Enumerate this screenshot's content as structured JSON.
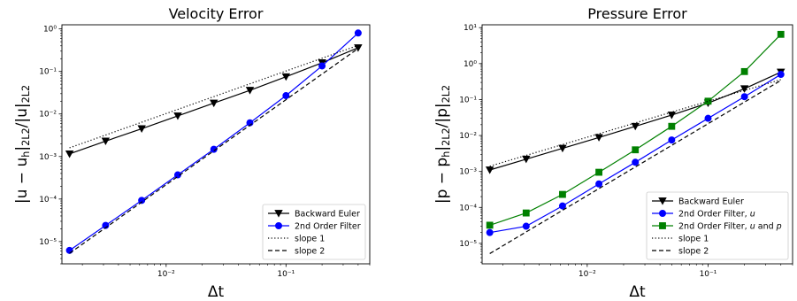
{
  "chart_data": [
    {
      "type": "line",
      "title": "Velocity Error",
      "xlabel": "Δt",
      "ylabel": "|u − u_h|_{2L2}/|u|_{2L2}",
      "xscale": "log",
      "yscale": "log",
      "xlim": [
        0.00135,
        0.5
      ],
      "ylim": [
        3e-06,
        1.25
      ],
      "xticks": [
        {
          "value": 0.01,
          "label": "10⁻²"
        },
        {
          "value": 0.1,
          "label": "10⁻¹"
        }
      ],
      "yticks": [
        {
          "value": 1e-05,
          "label": "10⁻⁵"
        },
        {
          "value": 0.0001,
          "label": "10⁻⁴"
        },
        {
          "value": 0.001,
          "label": "10⁻³"
        },
        {
          "value": 0.01,
          "label": "10⁻²"
        },
        {
          "value": 0.1,
          "label": "10⁻¹"
        },
        {
          "value": 1,
          "label": "10⁰"
        }
      ],
      "grid": false,
      "legend": "lower-right",
      "x": [
        0.0015625,
        0.003125,
        0.00625,
        0.0125,
        0.025,
        0.05,
        0.1,
        0.2,
        0.4
      ],
      "series": [
        {
          "name": "Backward Euler",
          "color": "#000000",
          "marker": "triangle-down",
          "dash": "solid",
          "values": [
            0.00115,
            0.0023,
            0.0045,
            0.009,
            0.018,
            0.036,
            0.075,
            0.16,
            0.36
          ]
        },
        {
          "name": "2nd Order Filter",
          "color": "#0000ff",
          "marker": "circle",
          "dash": "solid",
          "values": [
            6.2e-06,
            2.4e-05,
            9.3e-05,
            0.00037,
            0.00148,
            0.0062,
            0.027,
            0.135,
            0.8
          ]
        },
        {
          "name": "slope 1",
          "color": "#000000",
          "marker": "none",
          "dash": "dotted",
          "values": [
            0.0016,
            0.0032,
            0.0064,
            0.0128,
            0.0256,
            0.0512,
            0.1024,
            0.2048,
            0.4096
          ]
        },
        {
          "name": "slope 2",
          "color": "#000000",
          "marker": "none",
          "dash": "dashed",
          "values": [
            5.3e-06,
            2.12e-05,
            8.48e-05,
            0.000339,
            0.001357,
            0.00543,
            0.0217,
            0.0868,
            0.347
          ]
        }
      ]
    },
    {
      "type": "line",
      "title": "Pressure Error",
      "xlabel": "Δt",
      "ylabel": "|p − p_h|_{2L2}/|p|_{2L2}",
      "xscale": "log",
      "yscale": "log",
      "xlim": [
        0.00135,
        0.5
      ],
      "ylim": [
        2.7e-06,
        12
      ],
      "xticks": [
        {
          "value": 0.01,
          "label": "10⁻²"
        },
        {
          "value": 0.1,
          "label": "10⁻¹"
        }
      ],
      "yticks": [
        {
          "value": 1e-05,
          "label": "10⁻⁵"
        },
        {
          "value": 0.0001,
          "label": "10⁻⁴"
        },
        {
          "value": 0.001,
          "label": "10⁻³"
        },
        {
          "value": 0.01,
          "label": "10⁻²"
        },
        {
          "value": 0.1,
          "label": "10⁻¹"
        },
        {
          "value": 1,
          "label": "10⁰"
        },
        {
          "value": 10,
          "label": "10¹"
        }
      ],
      "grid": false,
      "legend": "lower-right",
      "x": [
        0.0015625,
        0.003125,
        0.00625,
        0.0125,
        0.025,
        0.05,
        0.1,
        0.2,
        0.4
      ],
      "series": [
        {
          "name": "Backward Euler",
          "color": "#000000",
          "marker": "triangle-down",
          "dash": "solid",
          "values": [
            0.0011,
            0.0022,
            0.0044,
            0.0088,
            0.018,
            0.037,
            0.08,
            0.2,
            0.58
          ]
        },
        {
          "name": "2nd Order Filter, u",
          "color": "#0000ff",
          "marker": "circle",
          "dash": "solid",
          "values": [
            2e-05,
            3e-05,
            0.00011,
            0.00045,
            0.0018,
            0.0075,
            0.03,
            0.12,
            0.5
          ]
        },
        {
          "name": "2nd Order Filter, u and p",
          "color": "#008000",
          "marker": "square",
          "dash": "solid",
          "values": [
            3.2e-05,
            7e-05,
            0.00023,
            0.00095,
            0.004,
            0.018,
            0.09,
            0.6,
            6.5
          ]
        },
        {
          "name": "slope 1",
          "color": "#000000",
          "marker": "none",
          "dash": "dotted",
          "values": [
            0.0014,
            0.0028,
            0.0056,
            0.0112,
            0.0224,
            0.0448,
            0.0896,
            0.1792,
            0.3584
          ]
        },
        {
          "name": "slope 2",
          "color": "#000000",
          "marker": "none",
          "dash": "dashed",
          "values": [
            5.2e-06,
            2.08e-05,
            8.32e-05,
            0.000333,
            0.001331,
            0.005325,
            0.0213,
            0.0852,
            0.3408
          ]
        }
      ]
    }
  ]
}
